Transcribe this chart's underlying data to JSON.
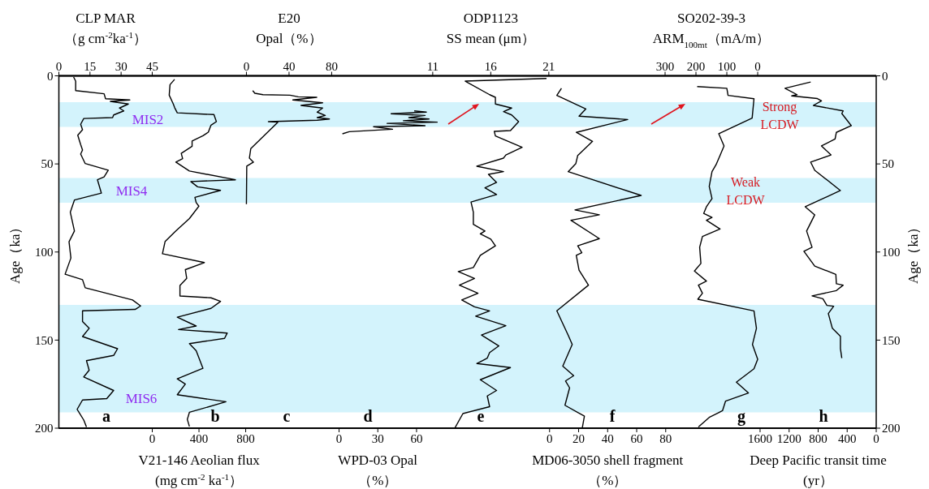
{
  "chart_data": [
    {
      "type": "line",
      "xlabel": "CLP MAR\n（g cm$^{-2}$ka$^{-1}$）",
      "xlim": [
        0,
        394
      ],
      "xticks": [
        0,
        15,
        30,
        45
      ],
      "ylabel": "Age（ka）",
      "ylim": [
        200,
        0
      ],
      "yticks": [
        0,
        50,
        100,
        150,
        200
      ],
      "annotations": [
        "a"
      ],
      "bands": [
        {
          "axis": "y",
          "from": 15,
          "to": 29,
          "label": "MIS2",
          "color": "#d3f3fc"
        },
        {
          "axis": "y",
          "from": 58,
          "to": 72,
          "label": "MIS4",
          "color": "#d3f3fc"
        },
        {
          "axis": "y",
          "from": 130,
          "to": 191,
          "label": "MIS6",
          "color": "#d3f3fc"
        }
      ],
      "series": [
        {
          "color": "#000000",
          "values": [
            0.7,
            3,
            8.4,
            10.2,
            13,
            13.7,
            14.5,
            16,
            18.3,
            19.9,
            22.2,
            23.7,
            24.2,
            27.5,
            30.6,
            33.7,
            39,
            42.1,
            44.4,
            49.8,
            53.6,
            57.4,
            59,
            66.6,
            70.5,
            77.4,
            88.1,
            94.2,
            103.4,
            112.6,
            115.7,
            120.3,
            127.2,
            130.6,
            132.6,
            133.4,
            139.5,
            143.3,
            148,
            154.9,
            158.7,
            161.7,
            167.1,
            170.9,
            178.6,
            183.2,
            184,
            189.3,
            195.4,
            199.3
          ],
          "x": [
            7.1,
            8.1,
            8.1,
            21.8,
            22.5,
            34.2,
            24.8,
            33.5,
            29.2,
            31.3,
            26.4,
            25.9,
            12.0,
            10.5,
            11.4,
            9.1,
            10.5,
            11.4,
            10.5,
            12.7,
            23.8,
            21.8,
            18.6,
            20.5,
            7.5,
            5.5,
            7.5,
            4.9,
            5.8,
            3.0,
            11.4,
            12.7,
            35.5,
            39.4,
            36.8,
            11.4,
            11.4,
            14.6,
            11.4,
            28.3,
            26.4,
            13.3,
            14.6,
            12.0,
            26.4,
            23.1,
            11.4,
            8.8,
            12.0,
            13.3
          ]
        }
      ]
    },
    {
      "type": "line",
      "xlabel": "V21-146 Aeolian flux\n(mg cm$^{-2}$ ka$^{-1}$）",
      "xlim": [
        -800,
        6200
      ],
      "xticks": [
        0,
        400,
        800
      ],
      "ylim": [
        200,
        0
      ],
      "yticks": [
        0,
        50,
        100,
        150,
        200
      ],
      "tick_labels": "x",
      "annotations": [
        "b"
      ],
      "series": [
        {
          "color": "#000000",
          "values": [
            2,
            5,
            11,
            16,
            18,
            21,
            22,
            26,
            28,
            32,
            34,
            37,
            40,
            44,
            47,
            49,
            54,
            59,
            60,
            63,
            65,
            69,
            72,
            74,
            81,
            88,
            94,
            101,
            106,
            110,
            115,
            119,
            125,
            126,
            128,
            132,
            137,
            142,
            144,
            146,
            149,
            152,
            156,
            166,
            172,
            175,
            181,
            185,
            191,
            195,
            199
          ],
          "x": [
            191,
            152,
            145,
            180,
            191,
            214,
            528,
            549,
            503,
            480,
            434,
            341,
            341,
            248,
            260,
            202,
            318,
            712,
            330,
            388,
            585,
            365,
            376,
            399,
            318,
            202,
            110,
            87,
            446,
            283,
            295,
            237,
            237,
            503,
            585,
            503,
            214,
            376,
            225,
            642,
            619,
            318,
            376,
            434,
            214,
            283,
            214,
            631,
            318,
            300,
            318
          ]
        }
      ]
    },
    {
      "type": "line",
      "xlabel": "E20\nOpal（%）",
      "xlim": [
        -176,
        591
      ],
      "xticks": [
        0,
        40,
        80
      ],
      "ylim": [
        200,
        0
      ],
      "yticks": [
        0,
        50,
        100,
        150,
        200
      ],
      "tick_labels": "x",
      "annotations": [
        "c"
      ],
      "series": [
        {
          "color": "#000000",
          "values": [
            8.4,
            9.9,
            10.7,
            11,
            11.9,
            12.2,
            13.7,
            15.3,
            16.8,
            18.3,
            20.6,
            22.5,
            23.7,
            24.5,
            25.2,
            26,
            26.3,
            41.3,
            46.7,
            49,
            51.3,
            72.8
          ],
          "x": [
            5.9,
            7.9,
            15.5,
            41,
            48.6,
            66,
            43.5,
            71.5,
            51.2,
            71.5,
            66.4,
            74,
            66.4,
            77.9,
            66.4,
            20.6,
            29.5,
            4.1,
            2.8,
            6.6,
            0.3,
            0
          ]
        }
      ]
    },
    {
      "type": "line",
      "xlabel": "WPD-03 Opal\n（%）",
      "xlim": [
        -217,
        416
      ],
      "xticks": [
        0,
        30,
        60
      ],
      "ylim": [
        200,
        0
      ],
      "yticks": [
        0,
        50,
        100,
        150,
        200
      ],
      "tick_labels": "x",
      "annotations": [
        "d"
      ],
      "series": [
        {
          "color": "#000000",
          "values": [
            19.9,
            20.6,
            21.5,
            22.5,
            23.7,
            24.5,
            25.5,
            26.3,
            27,
            28.3,
            28.9,
            30.3,
            31.7,
            32.9
          ],
          "x": [
            58.2,
            67.6,
            40.3,
            66.6,
            54,
            69.7,
            49.8,
            76,
            37.2,
            66.6,
            26.7,
            41.4,
            7.9,
            2.6
          ]
        }
      ]
    },
    {
      "type": "line",
      "xlabel": "ODP1123\nSS mean (μm）",
      "xlim": [
        -21.2,
        49.2
      ],
      "xticks": [
        11,
        16,
        21
      ],
      "ylim": [
        200,
        0
      ],
      "yticks": [
        0,
        50,
        100,
        150,
        200
      ],
      "tick_labels": "x",
      "annotations": [
        "e"
      ],
      "series": [
        {
          "color": "#000000",
          "values": [
            1.5,
            3,
            10.7,
            12.2,
            16,
            18.3,
            20.3,
            22.2,
            26,
            31.1,
            31.5,
            34.1,
            40.6,
            44.9,
            46.7,
            51.3,
            54.4,
            55.9,
            60.5,
            63.6,
            67.4,
            71.6,
            77.4,
            84.3,
            88.1,
            89.7,
            92.7,
            96.5,
            101.9,
            108.8,
            111.1,
            115,
            118.8,
            123.4,
            127.2,
            131.1,
            133.4,
            136.4,
            141.8,
            147.1,
            153.3,
            157.1,
            160.2,
            163.3,
            165.6,
            172.5,
            178.6,
            181.7,
            187.8,
            191.7,
            200
          ],
          "x": [
            20.8,
            13.8,
            15.9,
            16.4,
            16.4,
            17.8,
            17.1,
            17.8,
            18.4,
            17.7,
            16.3,
            16.4,
            18.7,
            17.3,
            17.1,
            14.8,
            17.1,
            15.8,
            16.5,
            15.5,
            16.5,
            14.3,
            14.5,
            14.5,
            15.5,
            15.1,
            16,
            16.4,
            15.1,
            14.5,
            13.2,
            14.6,
            13.3,
            14.9,
            13.5,
            14.6,
            15.9,
            14.7,
            17.3,
            15.2,
            16.7,
            15.9,
            15.7,
            14.8,
            17.7,
            15.1,
            16.5,
            15.7,
            15.9,
            13.6,
            12.9
          ]
        }
      ]
    },
    {
      "type": "line",
      "xlabel": "MD06-3050 shell fragment\n（%）",
      "xlim": [
        -338,
        225
      ],
      "xticks": [
        0,
        20,
        40,
        60,
        80
      ],
      "ylim": [
        200,
        0
      ],
      "yticks": [
        0,
        50,
        100,
        150,
        200
      ],
      "tick_labels": "x",
      "annotations": [
        "f"
      ],
      "series": [
        {
          "color": "#000000",
          "values": [
            7.1,
            11.1,
            18.8,
            22.9,
            24.8,
            32.1,
            37.2,
            45.2,
            49.8,
            54.4,
            67.9,
            76.1,
            78.9,
            82,
            92.4,
            96.5,
            100.4,
            101.9,
            110.3,
            118.8,
            133.4,
            147.2,
            152.5,
            164.8,
            170.2,
            173.2,
            177.1,
            187,
            193.2,
            200
          ],
          "x": [
            8.2,
            5,
            25,
            20.3,
            53.8,
            18.4,
            29.6,
            19.4,
            18.1,
            12.8,
            63.1,
            17.5,
            34.3,
            14.7,
            34.3,
            19.4,
            22.2,
            18.4,
            20.3,
            26.8,
            5,
            12.8,
            15.6,
            9.1,
            16.6,
            11,
            13.8,
            10.6,
            24,
            22.5
          ]
        }
      ]
    },
    {
      "type": "line",
      "xlabel": "SO202-39-3\nARM$_{100mt}$（mA/m）",
      "xlim": [
        2264,
        -384
      ],
      "xticks": [
        300,
        200,
        100,
        0
      ],
      "ylim": [
        200,
        0
      ],
      "yticks": [
        0,
        50,
        100,
        150,
        200
      ],
      "tick_labels": "x",
      "annotations": [
        "g",
        "Strong\nLCDW",
        "Weak\nLCDW"
      ],
      "series": [
        {
          "color": "#000000",
          "values": [
            6.1,
            7.1,
            11.1,
            13,
            24,
            32.9,
            39.8,
            45.2,
            50.5,
            54.4,
            62.8,
            69.7,
            74.3,
            78.1,
            80.4,
            82,
            86.9,
            91.2,
            97.3,
            106.5,
            110.8,
            116.5,
            118.8,
            123.4,
            126.8,
            133.4,
            143.3,
            152.5,
            160.9,
            166.3,
            173.9,
            180,
            184.6,
            190.1,
            193.9,
            199.3
          ],
          "x": [
            196,
            100,
            96,
            12,
            18,
            126,
            109,
            122,
            135,
            148,
            157,
            148,
            166,
            175,
            148,
            166,
            122,
            179,
            188,
            184,
            205,
            166,
            192,
            179,
            194,
            12,
            4,
            17,
            0,
            12,
            69,
            30,
            104,
            114,
            157,
            192
          ]
        }
      ]
    },
    {
      "type": "line",
      "xlabel": "Deep Pacific transit time\n(yr）",
      "xlim": [
        11260,
        0
      ],
      "xticks": [
        1600,
        1200,
        800,
        400,
        0
      ],
      "y2label": "Age（ka）",
      "y2lim": [
        200,
        0
      ],
      "y2ticks": [
        0,
        50,
        100,
        150,
        200
      ],
      "annotations": [
        "h"
      ],
      "series": [
        {
          "color": "#000000",
          "axis": "y2",
          "values": [
            3.5,
            7.1,
            10.7,
            11.4,
            12.9,
            14.2,
            16.8,
            19.9,
            21.4,
            28.3,
            32.1,
            35.9,
            39.8,
            44.9,
            49,
            53.6,
            65.1,
            74.3,
            78.9,
            88.1,
            97.3,
            99.6,
            108,
            112.7,
            118,
            118.8,
            121.9,
            124.9,
            126.5,
            130.3,
            130.8,
            134.9,
            143.3,
            147.9,
            154.8,
            160.2
          ],
          "x": [
            903,
            1257,
            1090,
            1164,
            810,
            754,
            866,
            455,
            474,
            343,
            549,
            567,
            754,
            623,
            903,
            847,
            493,
            978,
            847,
            959,
            884,
            996,
            847,
            556,
            549,
            455,
            549,
            884,
            735,
            679,
            586,
            660,
            604,
            493,
            493,
            474
          ]
        }
      ]
    }
  ]
}
